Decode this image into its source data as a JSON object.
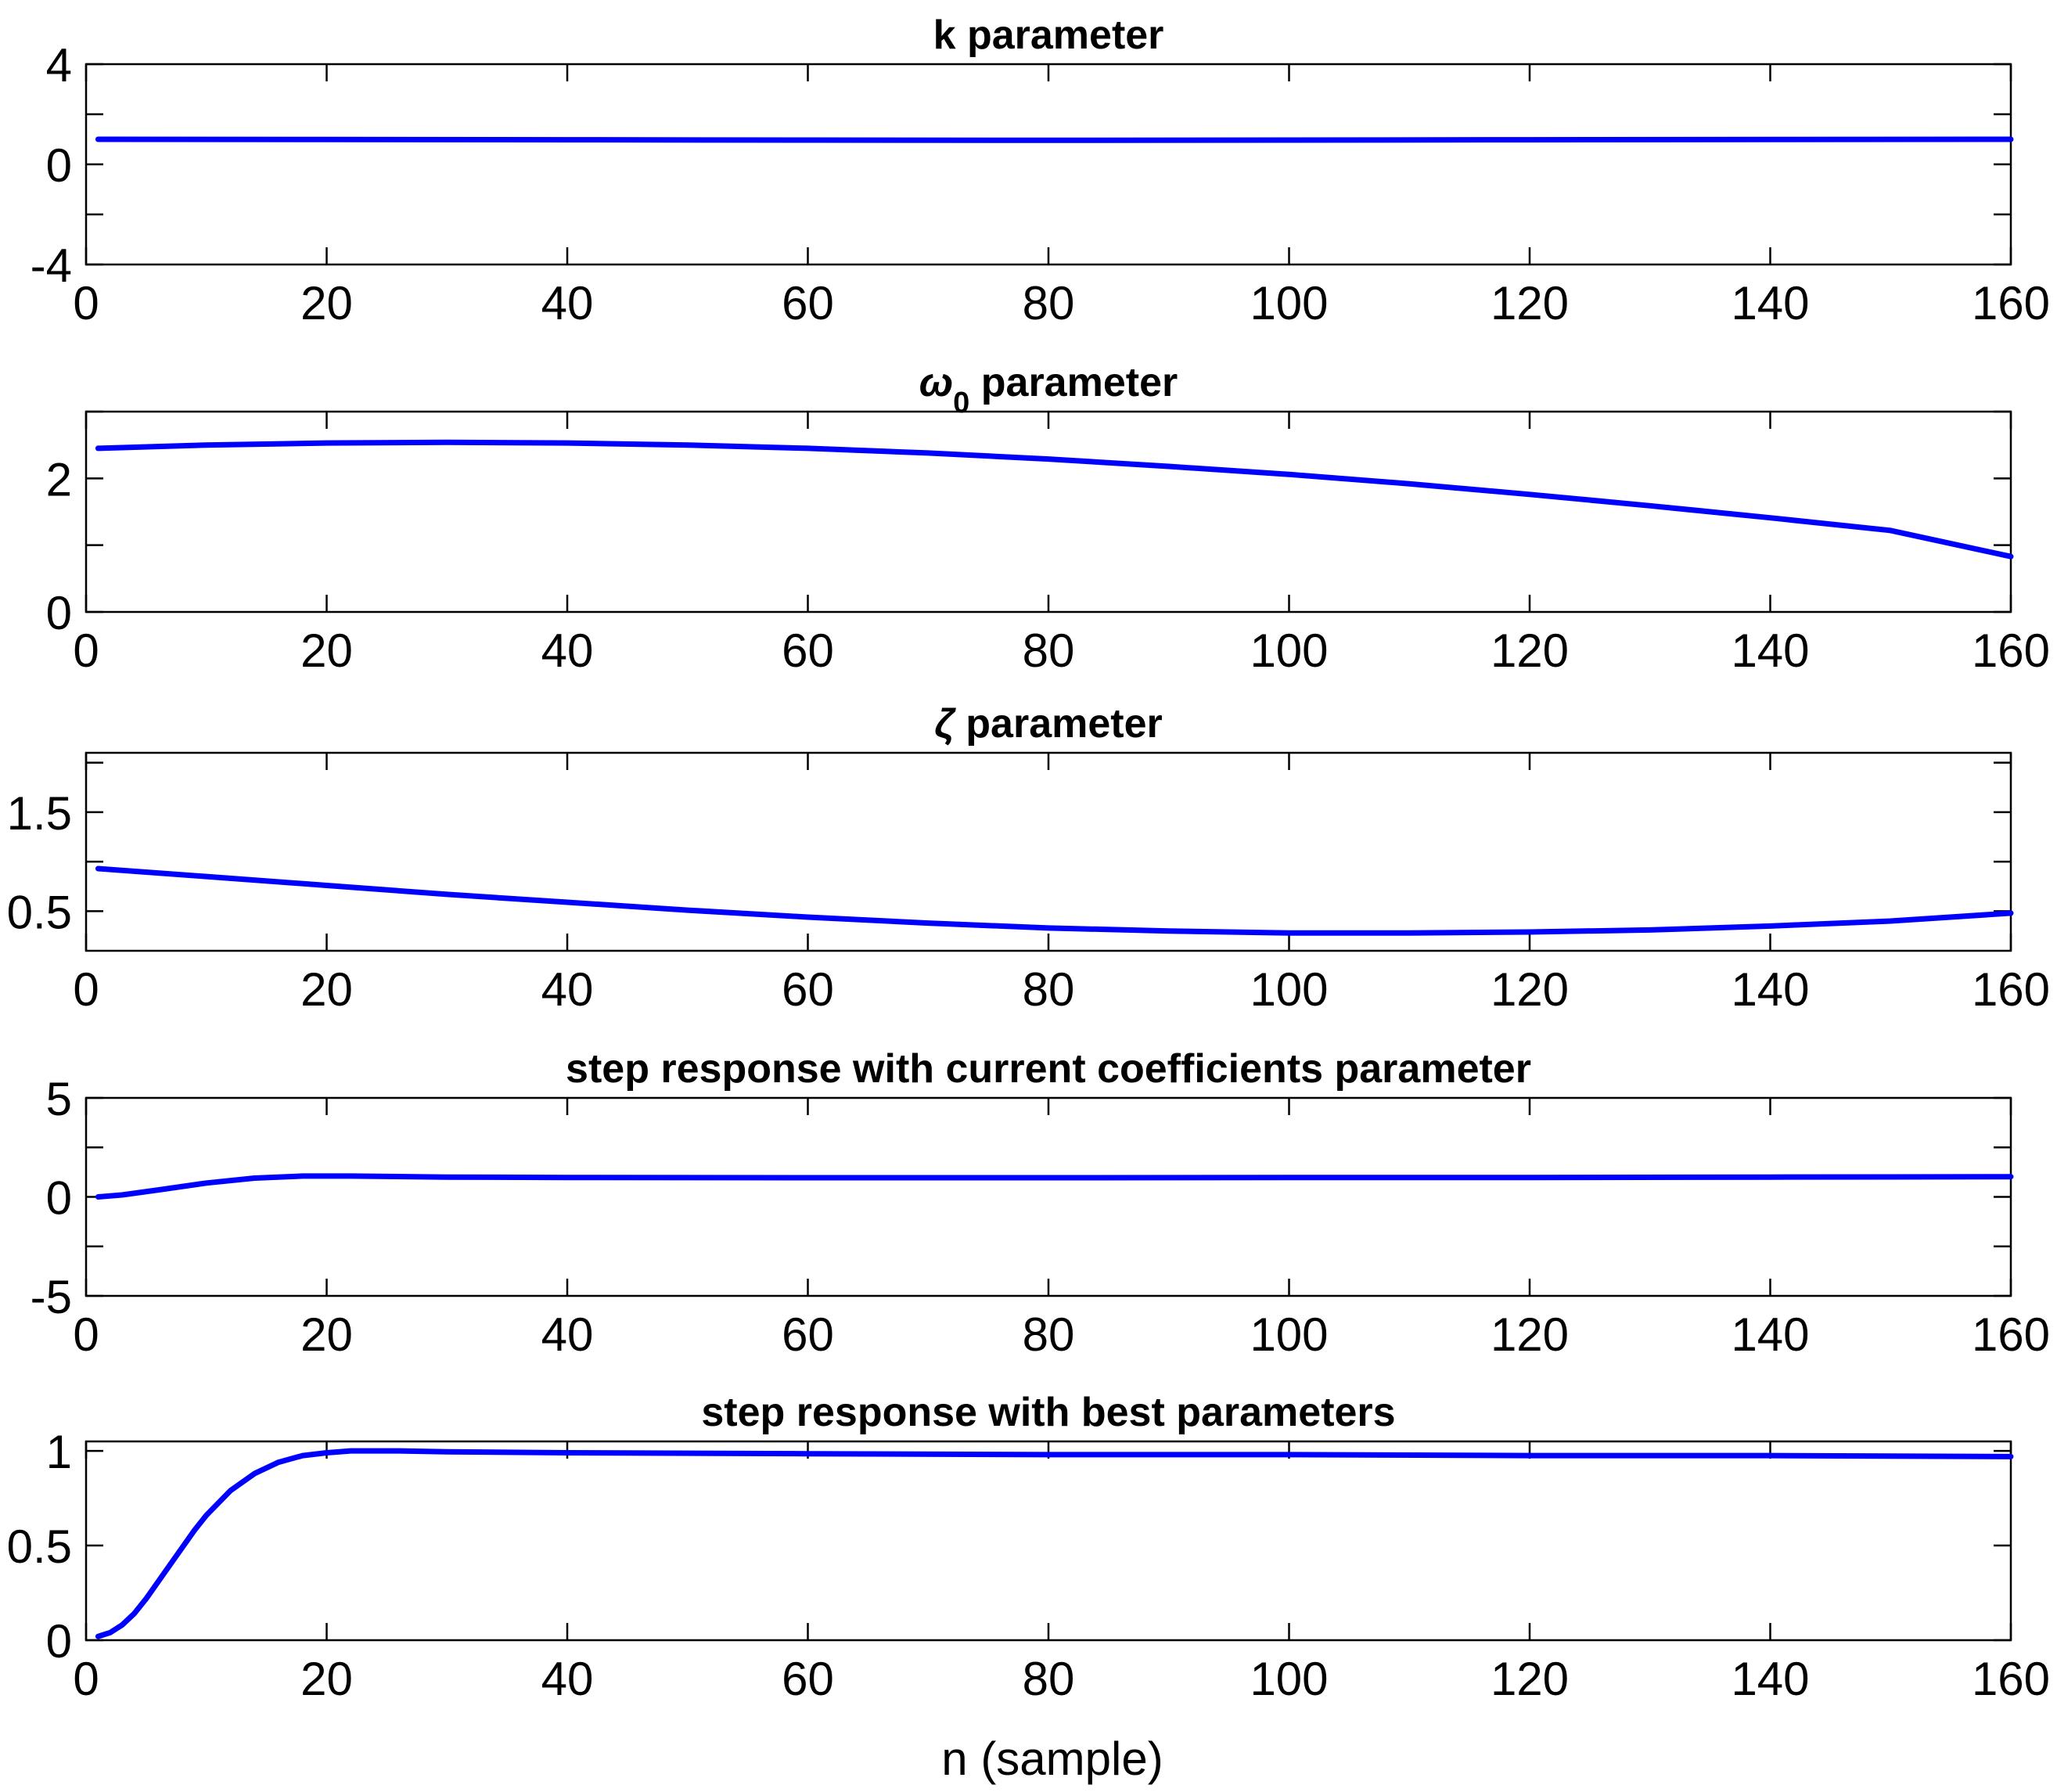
{
  "colors": {
    "line": "#0000ff",
    "axes": "#000000",
    "background": "#ffffff"
  },
  "figure": {
    "xlabel": "n (sample)"
  },
  "chart_data": [
    {
      "type": "line",
      "title": "k parameter",
      "title_parts": [
        [
          "k parameter",
          ""
        ]
      ],
      "xlim": [
        0,
        160
      ],
      "xticks": [
        0,
        20,
        40,
        60,
        80,
        100,
        120,
        140,
        160
      ],
      "ylim": [
        -4,
        4
      ],
      "yticks": [
        -4,
        -2,
        0,
        2,
        4
      ],
      "ytick_labels": [
        "-4",
        "",
        "0",
        "",
        "4"
      ],
      "series": [
        {
          "x": [
            1,
            20,
            40,
            60,
            80,
            100,
            120,
            140,
            160
          ],
          "y": [
            1.0,
            0.99,
            0.98,
            0.97,
            0.96,
            0.97,
            0.98,
            0.99,
            1.0
          ]
        }
      ]
    },
    {
      "type": "line",
      "title": "ω0 parameter",
      "title_parts": [
        [
          "ω",
          "italic"
        ],
        [
          "0",
          "sub"
        ],
        [
          " parameter",
          ""
        ]
      ],
      "xlim": [
        0,
        160
      ],
      "xticks": [
        0,
        20,
        40,
        60,
        80,
        100,
        120,
        140,
        160
      ],
      "ylim": [
        0,
        3
      ],
      "yticks": [
        0,
        1,
        2,
        3
      ],
      "ytick_labels": [
        "0",
        "",
        "2",
        ""
      ],
      "series": [
        {
          "x": [
            1,
            10,
            20,
            30,
            40,
            50,
            60,
            70,
            80,
            90,
            100,
            110,
            120,
            130,
            140,
            150,
            160
          ],
          "y": [
            2.45,
            2.5,
            2.53,
            2.54,
            2.53,
            2.5,
            2.45,
            2.38,
            2.29,
            2.18,
            2.06,
            1.92,
            1.76,
            1.59,
            1.41,
            1.22,
            0.83
          ]
        }
      ]
    },
    {
      "type": "line",
      "title": "ζ parameter",
      "title_parts": [
        [
          "ζ",
          "italic"
        ],
        [
          "  parameter",
          ""
        ]
      ],
      "xlim": [
        0,
        160
      ],
      "xticks": [
        0,
        20,
        40,
        60,
        80,
        100,
        120,
        140,
        160
      ],
      "ylim": [
        0.1,
        2.1
      ],
      "yticks": [
        0.5,
        1.0,
        1.5,
        2.0
      ],
      "ytick_labels": [
        "0.5",
        "",
        "1.5",
        ""
      ],
      "series": [
        {
          "x": [
            1,
            10,
            20,
            30,
            40,
            50,
            60,
            70,
            80,
            90,
            100,
            110,
            120,
            130,
            140,
            150,
            160
          ],
          "y": [
            0.93,
            0.85,
            0.76,
            0.67,
            0.59,
            0.51,
            0.44,
            0.38,
            0.33,
            0.3,
            0.28,
            0.28,
            0.29,
            0.31,
            0.35,
            0.4,
            0.48
          ]
        }
      ]
    },
    {
      "type": "line",
      "title": "step response with current coefficients parameter",
      "title_parts": [
        [
          "step response with current coefficients parameter",
          ""
        ]
      ],
      "xlim": [
        0,
        160
      ],
      "xticks": [
        0,
        20,
        40,
        60,
        80,
        100,
        120,
        140,
        160
      ],
      "ylim": [
        -5,
        5
      ],
      "yticks": [
        -5,
        -2.5,
        0,
        2.5,
        5
      ],
      "ytick_labels": [
        "-5",
        "",
        "0",
        "",
        "5"
      ],
      "series": [
        {
          "x": [
            1,
            3,
            6,
            10,
            14,
            18,
            22,
            30,
            40,
            60,
            80,
            100,
            120,
            140,
            160
          ],
          "y": [
            0.0,
            0.1,
            0.35,
            0.7,
            0.95,
            1.05,
            1.05,
            1.0,
            0.98,
            0.97,
            0.97,
            0.98,
            0.98,
            1.0,
            1.02
          ]
        }
      ]
    },
    {
      "type": "line",
      "title": "step response with best parameters",
      "title_parts": [
        [
          "step response with best parameters",
          ""
        ]
      ],
      "xlim": [
        0,
        160
      ],
      "xticks": [
        0,
        20,
        40,
        60,
        80,
        100,
        120,
        140,
        160
      ],
      "ylim": [
        0,
        1.05
      ],
      "yticks": [
        0,
        0.5,
        1
      ],
      "ytick_labels": [
        "0",
        "0.5",
        "1"
      ],
      "series": [
        {
          "x": [
            1,
            2,
            3,
            4,
            5,
            6,
            7,
            8,
            9,
            10,
            12,
            14,
            16,
            18,
            20,
            22,
            26,
            30,
            40,
            60,
            80,
            100,
            120,
            140,
            160
          ],
          "y": [
            0.02,
            0.04,
            0.08,
            0.14,
            0.22,
            0.31,
            0.4,
            0.49,
            0.58,
            0.66,
            0.79,
            0.88,
            0.94,
            0.975,
            0.99,
            1.0,
            1.0,
            0.995,
            0.99,
            0.985,
            0.98,
            0.98,
            0.975,
            0.975,
            0.97
          ]
        }
      ]
    }
  ]
}
